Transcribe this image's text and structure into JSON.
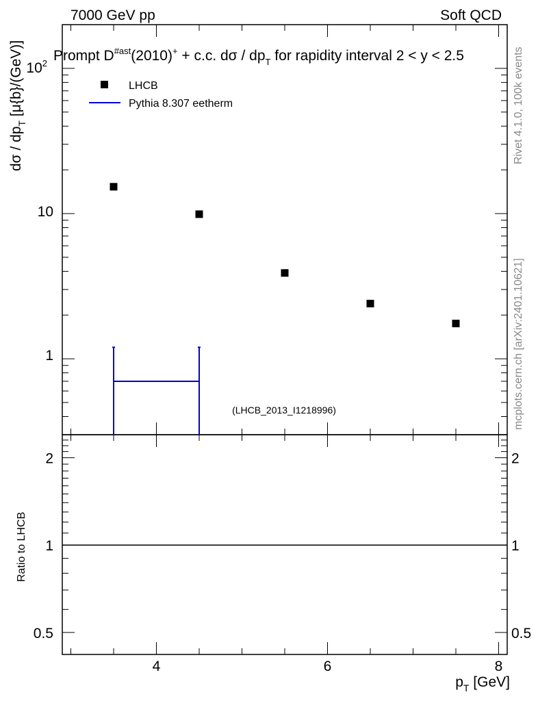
{
  "header": {
    "left": "7000 GeV pp",
    "right": "Soft QCD"
  },
  "title": {
    "prefix": "Prompt D",
    "sup1": "#ast",
    "mid": "(2010)",
    "sup2": "+",
    "suffix": " + c.c.  dσ / dp",
    "sub": "T",
    "tail": " for rapidity interval 2 < y < 2.5"
  },
  "side_labels": {
    "rivet": "Rivet 4.1.0,  100k events",
    "mcplots": "mcplots.cern.ch [arXiv:2401.10621]"
  },
  "analysis_tag": "(LHCB_2013_I1218996)",
  "axes": {
    "ylabel_main": "dσ / dp",
    "ylabel_main_sub": "T",
    "ylabel_main_unit": " [μ{b}/(GeV)]",
    "ylabel_ratio": "Ratio to LHCB",
    "xlabel": "p",
    "xlabel_sub": "T",
    "xlabel_unit": " [GeV]",
    "y_tick_labels": {
      "t1": "1",
      "t10": "10",
      "t100_base": "10",
      "t100_exp": "2"
    },
    "ratio_tick_labels": [
      "0.5",
      "1",
      "2"
    ],
    "x_tick_labels": [
      "4",
      "6",
      "8"
    ]
  },
  "legend": {
    "data_label": "LHCB",
    "mc_label": "Pythia 8.307 eetherm",
    "mc_color": "#0000dd"
  },
  "chart_data": {
    "type": "scatter",
    "x_range": [
      2.9,
      8.1
    ],
    "y_range_log": [
      0.3,
      200
    ],
    "ratio_range_log": [
      0.42,
      2.4
    ],
    "log_y": true,
    "grid": false,
    "legend_position": "top-left",
    "series": [
      {
        "name": "LHCB",
        "marker": "square",
        "color": "#000000",
        "x": [
          3.5,
          4.5,
          5.5,
          6.5,
          7.5
        ],
        "y": [
          15.3,
          9.9,
          3.9,
          2.4,
          1.75
        ]
      },
      {
        "name": "Pythia 8.307 eetherm",
        "type": "histogram",
        "color": "#0000dd",
        "bin_lo": 3.5,
        "bin_hi": 4.5,
        "value": 0.7,
        "err_hi": 1.2
      }
    ],
    "ratio_reference": 1
  }
}
